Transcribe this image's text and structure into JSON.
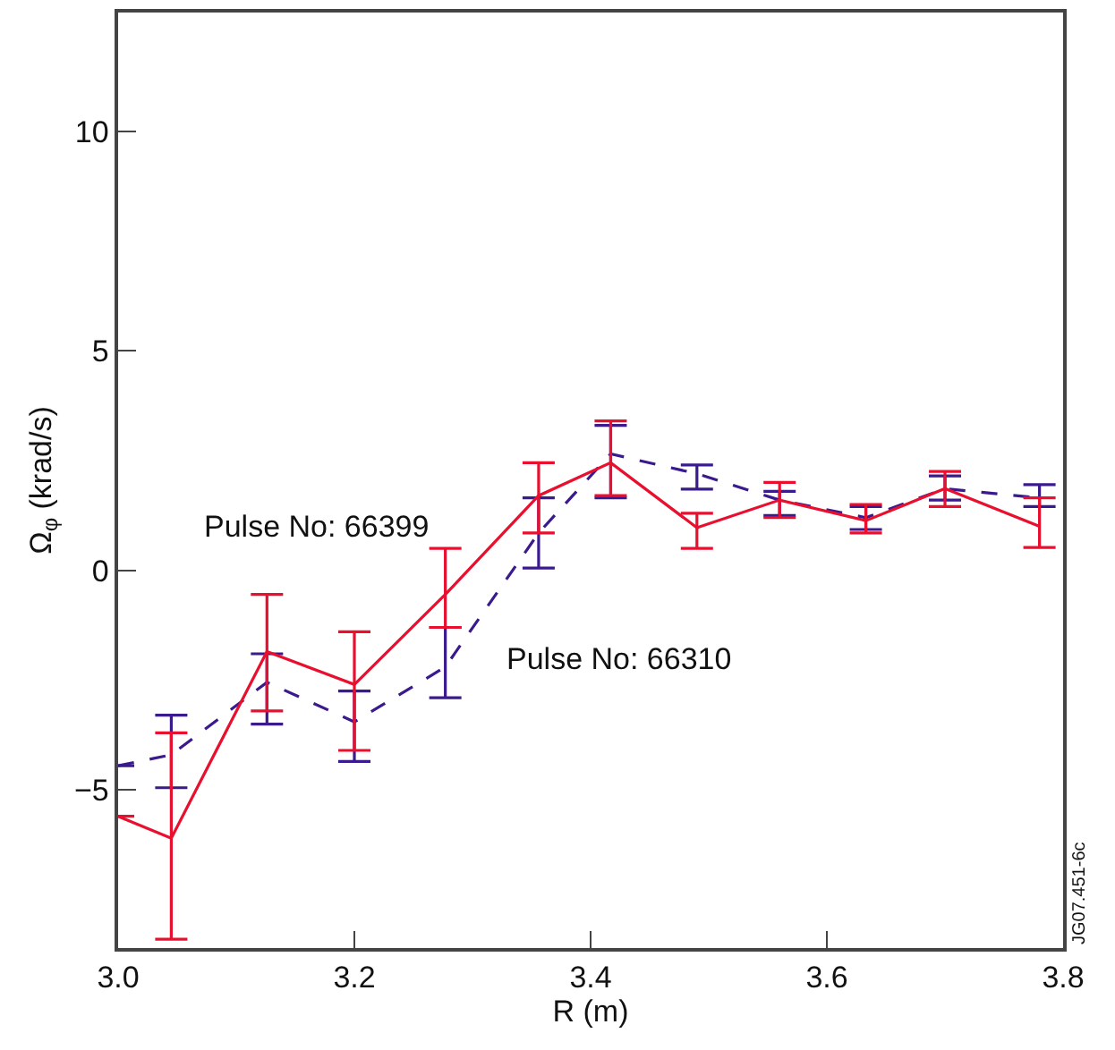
{
  "chart_data": {
    "type": "line",
    "xlabel": "R (m)",
    "ylabel": "Ω$_{φ}$ (krad/s)",
    "xlim": [
      3.0,
      3.8
    ],
    "xticks": [
      {
        "value": 3.0,
        "label": "3.0"
      },
      {
        "value": 3.2,
        "label": "3.2"
      },
      {
        "value": 3.4,
        "label": "3.4"
      },
      {
        "value": 3.6,
        "label": "3.6"
      },
      {
        "value": 3.8,
        "label": "3.8"
      }
    ],
    "ylim": [
      -8.6,
      12.7
    ],
    "yticks": [
      {
        "value": -5,
        "label": "−5"
      },
      0,
      5,
      10
    ],
    "marker": "none",
    "series": [
      {
        "color": "#3a1a8c",
        "line_style": "dashed",
        "x": [
          3.0,
          3.045,
          3.126,
          3.2,
          3.277,
          3.356,
          3.417,
          3.49,
          3.56,
          3.633,
          3.7,
          3.78
        ],
        "values": [
          -4.45,
          -4.2,
          -2.55,
          -3.45,
          -2.2,
          0.85,
          2.65,
          2.2,
          1.6,
          1.2,
          1.86,
          1.65
        ],
        "errors": [
          null,
          [
            -4.95,
            -3.3
          ],
          [
            -3.5,
            -1.9
          ],
          [
            -4.35,
            -2.75
          ],
          [
            -2.9,
            -1.3
          ],
          [
            0.05,
            1.65
          ],
          [
            1.65,
            3.3
          ],
          [
            1.85,
            2.4
          ],
          [
            1.25,
            1.8
          ],
          [
            0.93,
            1.45
          ],
          [
            1.6,
            2.15
          ],
          [
            1.45,
            1.95
          ]
        ]
      },
      {
        "color": "#e8102e",
        "line_style": "solid",
        "x": [
          3.0,
          3.045,
          3.126,
          3.2,
          3.277,
          3.356,
          3.417,
          3.49,
          3.56,
          3.633,
          3.7,
          3.78
        ],
        "values": [
          -5.6,
          -6.1,
          -1.85,
          -2.6,
          -0.55,
          1.7,
          2.45,
          0.97,
          1.6,
          1.13,
          1.86,
          1.0
        ],
        "errors": [
          null,
          [
            -8.4,
            -3.7
          ],
          [
            -3.2,
            -0.55
          ],
          [
            -4.1,
            -1.4
          ],
          [
            -1.3,
            0.5
          ],
          [
            0.85,
            2.45
          ],
          [
            1.7,
            3.4
          ],
          [
            0.5,
            1.3
          ],
          [
            1.2,
            2.0
          ],
          [
            0.85,
            1.5
          ],
          [
            1.45,
            2.25
          ],
          [
            0.52,
            1.65
          ]
        ]
      }
    ],
    "annotations": [
      "Pulse No: 66399",
      "Pulse No: 66310",
      "JG07.451-6c"
    ]
  }
}
